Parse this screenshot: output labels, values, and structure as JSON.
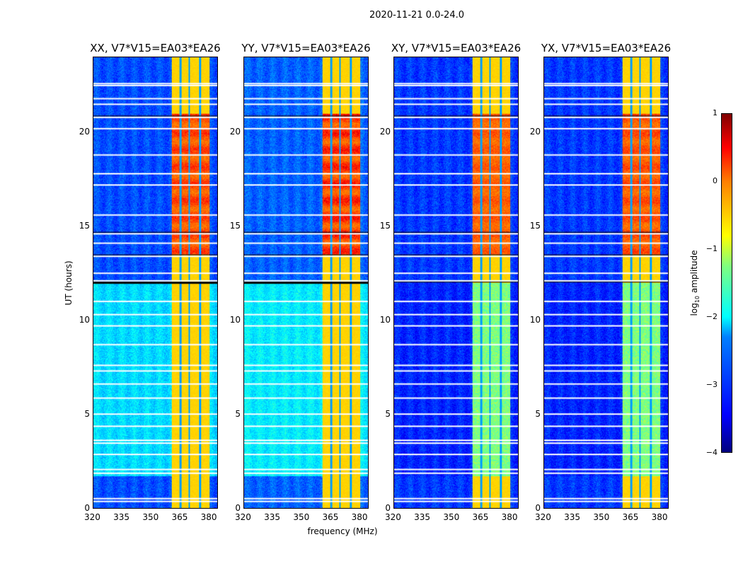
{
  "chart_data": {
    "type": "heatmap",
    "title": "2020-11-21 0.0-24.0",
    "xlabel": "frequency (MHz)",
    "ylabel": "UT (hours)",
    "xlim": [
      320,
      384.5
    ],
    "ylim": [
      0,
      24
    ],
    "xticks": [
      "320",
      "335",
      "350",
      "365",
      "380"
    ],
    "xtick_values": [
      320,
      335,
      350,
      365,
      380
    ],
    "yticks": [
      "0",
      "5",
      "10",
      "15",
      "20"
    ],
    "ytick_values": [
      0,
      5,
      10,
      15,
      20
    ],
    "panels": [
      {
        "title": "XX, V7*V15=EA03*EA26",
        "background_low": -2.3,
        "background_high": -3.0,
        "band_peak": 0.4
      },
      {
        "title": "YY, V7*V15=EA03*EA26",
        "background_low": -2.2,
        "background_high": -2.9,
        "band_peak": 0.6
      },
      {
        "title": "XY, V7*V15=EA03*EA26",
        "background_low": -3.2,
        "background_high": -3.1,
        "band_peak": 0.2
      },
      {
        "title": "YX, V7*V15=EA03*EA26",
        "background_low": -3.2,
        "background_high": -3.1,
        "band_peak": 0.3
      }
    ],
    "rfi_band_mhz": [
      360.7,
      380.4
    ],
    "rfi_band_gaps_mhz": [
      365.1,
      369.8,
      375.3
    ],
    "flagged_hours": [
      0.35,
      0.5,
      1.85,
      2.05,
      2.85,
      3.45,
      3.6,
      4.35,
      5.0,
      5.85,
      6.6,
      7.3,
      7.6,
      8.7,
      9.7,
      10.3,
      11.0,
      12.1,
      12.5,
      13.4,
      14.1,
      14.6,
      15.6,
      17.2,
      17.8,
      18.8,
      20.2,
      20.8,
      21.5,
      21.8,
      22.5,
      22.6
    ],
    "colorbar": {
      "label": "log10 amplitude",
      "label_main": "log",
      "label_sub": "10",
      "label_rest": " amplitude",
      "range": [
        -4,
        1
      ],
      "ticks": [
        "1",
        "0",
        "−1",
        "−2",
        "−3",
        "−4"
      ],
      "tick_values": [
        1,
        0,
        -1,
        -2,
        -3,
        -4
      ],
      "colormap": "jet"
    }
  }
}
